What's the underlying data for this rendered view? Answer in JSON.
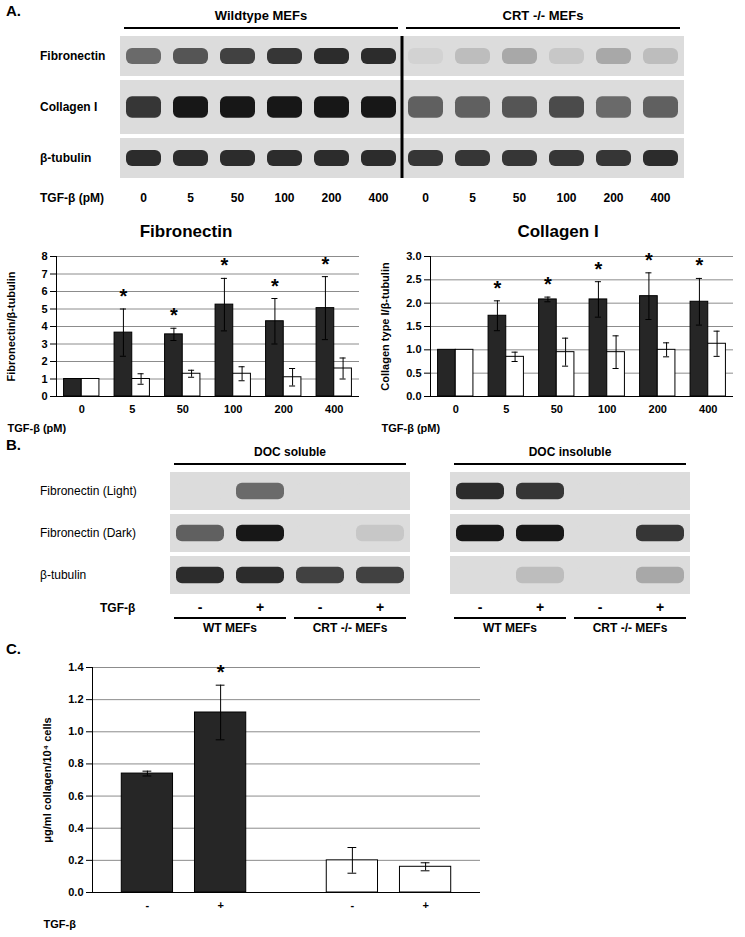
{
  "panel_labels": [
    "A.",
    "B.",
    "C."
  ],
  "blots": [
    {
      "groups": [
        "Wildtype MEFs",
        "CRT -/- MEFs"
      ],
      "rows": [
        "Fibronectin",
        "Collagen I",
        "β-tubulin"
      ],
      "x_label": "TGF-β (pM)",
      "lanes": [
        0,
        5,
        50,
        100,
        200,
        400,
        0,
        5,
        50,
        100,
        200,
        400
      ],
      "band_intensity": [
        [
          0.55,
          0.65,
          0.75,
          0.8,
          0.85,
          0.85,
          0.05,
          0.15,
          0.25,
          0.1,
          0.25,
          0.15
        ],
        [
          0.8,
          0.95,
          0.95,
          0.95,
          0.95,
          0.95,
          0.6,
          0.6,
          0.65,
          0.7,
          0.55,
          0.6
        ],
        [
          0.85,
          0.85,
          0.85,
          0.85,
          0.85,
          0.85,
          0.8,
          0.8,
          0.8,
          0.8,
          0.8,
          0.85
        ]
      ]
    },
    {
      "groups": [
        "DOC soluble",
        "DOC insoluble"
      ],
      "rows": [
        "Fibronectin (Light)",
        "Fibronectin (Dark)",
        "β-tubulin"
      ],
      "x_label": "TGF-β",
      "lanes": [
        "-",
        "+",
        "-",
        "+",
        "-",
        "+",
        "-",
        "+"
      ],
      "cell_lines": [
        "WT MEFs",
        "CRT -/- MEFs",
        "WT MEFs",
        "CRT -/- MEFs"
      ],
      "band_intensity": [
        [
          0,
          0.55,
          0,
          0,
          0.85,
          0.8,
          0,
          0
        ],
        [
          0.6,
          0.95,
          0,
          0.1,
          0.95,
          0.95,
          0,
          0.8
        ],
        [
          0.85,
          0.85,
          0.75,
          0.75,
          0,
          0.15,
          0,
          0.25
        ]
      ]
    }
  ],
  "chart_data": [
    {
      "type": "bar",
      "title": "Fibronectin",
      "x_label": "TGF-β (pM)",
      "y_label": "Fibronectin/β-tubulin",
      "categories": [
        "0",
        "5",
        "50",
        "100",
        "200",
        "400"
      ],
      "ylim": [
        0,
        8
      ],
      "yticks": [
        0,
        1,
        2,
        3,
        4,
        5,
        6,
        7,
        8
      ],
      "grid": true,
      "series": [
        {
          "color": "#262626",
          "values": [
            1,
            3.65,
            3.55,
            5.25,
            4.3,
            5.05
          ],
          "errors": [
            null,
            1.35,
            0.35,
            1.5,
            1.3,
            1.8
          ],
          "significance": [
            null,
            "*",
            "*",
            "*",
            "*",
            "*"
          ]
        },
        {
          "color": "#ffffff",
          "values": [
            1,
            1.0,
            1.3,
            1.3,
            1.1,
            1.6
          ],
          "errors": [
            null,
            0.3,
            0.2,
            0.4,
            0.5,
            0.6
          ]
        }
      ]
    },
    {
      "type": "bar",
      "title": "Collagen I",
      "x_label": "TGF-β (pM)",
      "y_label": "Collagen type I/β-tubulin",
      "categories": [
        "0",
        "5",
        "50",
        "100",
        "200",
        "400"
      ],
      "ylim": [
        0,
        3
      ],
      "yticks": [
        {
          "value": 0,
          "label": "0.0"
        },
        {
          "value": 0.5,
          "label": "0.5"
        },
        {
          "value": 1,
          "label": "1.0"
        },
        {
          "value": 1.5,
          "label": "1.5"
        },
        {
          "value": 2,
          "label": "2.0"
        },
        {
          "value": 2.5,
          "label": "2.5"
        },
        {
          "value": 3,
          "label": "3.0"
        }
      ],
      "grid": true,
      "series": [
        {
          "color": "#262626",
          "values": [
            1,
            1.73,
            2.08,
            2.08,
            2.15,
            2.03
          ],
          "errors": [
            null,
            0.32,
            0.05,
            0.38,
            0.5,
            0.5
          ],
          "significance": [
            null,
            "*",
            "*",
            "*",
            "*",
            "*"
          ]
        },
        {
          "color": "#ffffff",
          "values": [
            1,
            0.85,
            0.95,
            0.95,
            1.0,
            1.13
          ],
          "errors": [
            null,
            0.1,
            0.3,
            0.35,
            0.15,
            0.27
          ]
        }
      ]
    },
    {
      "type": "bar",
      "x_label": "TGF-β",
      "y_label": "μg/ml collagen/10⁴ cells",
      "categories": [
        "-",
        "+",
        "-",
        "+"
      ],
      "values": [
        0.74,
        1.12,
        0.2,
        0.16
      ],
      "errors": [
        0.015,
        0.17,
        0.08,
        0.025
      ],
      "significance": [
        null,
        "*",
        null,
        null
      ],
      "colors": [
        "#262626",
        "#262626",
        "#ffffff",
        "#ffffff"
      ],
      "ylim": [
        0,
        1.4
      ],
      "yticks": [
        {
          "value": 0,
          "label": "0.0"
        },
        {
          "value": 0.2,
          "label": "0.2"
        },
        {
          "value": 0.4,
          "label": "0.4"
        },
        {
          "value": 0.6,
          "label": "0.6"
        },
        {
          "value": 0.8,
          "label": "0.8"
        },
        {
          "value": 1,
          "label": "1.0"
        },
        {
          "value": 1.2,
          "label": "1.2"
        },
        {
          "value": 1.4,
          "label": "1.4"
        }
      ],
      "grid": true
    }
  ]
}
